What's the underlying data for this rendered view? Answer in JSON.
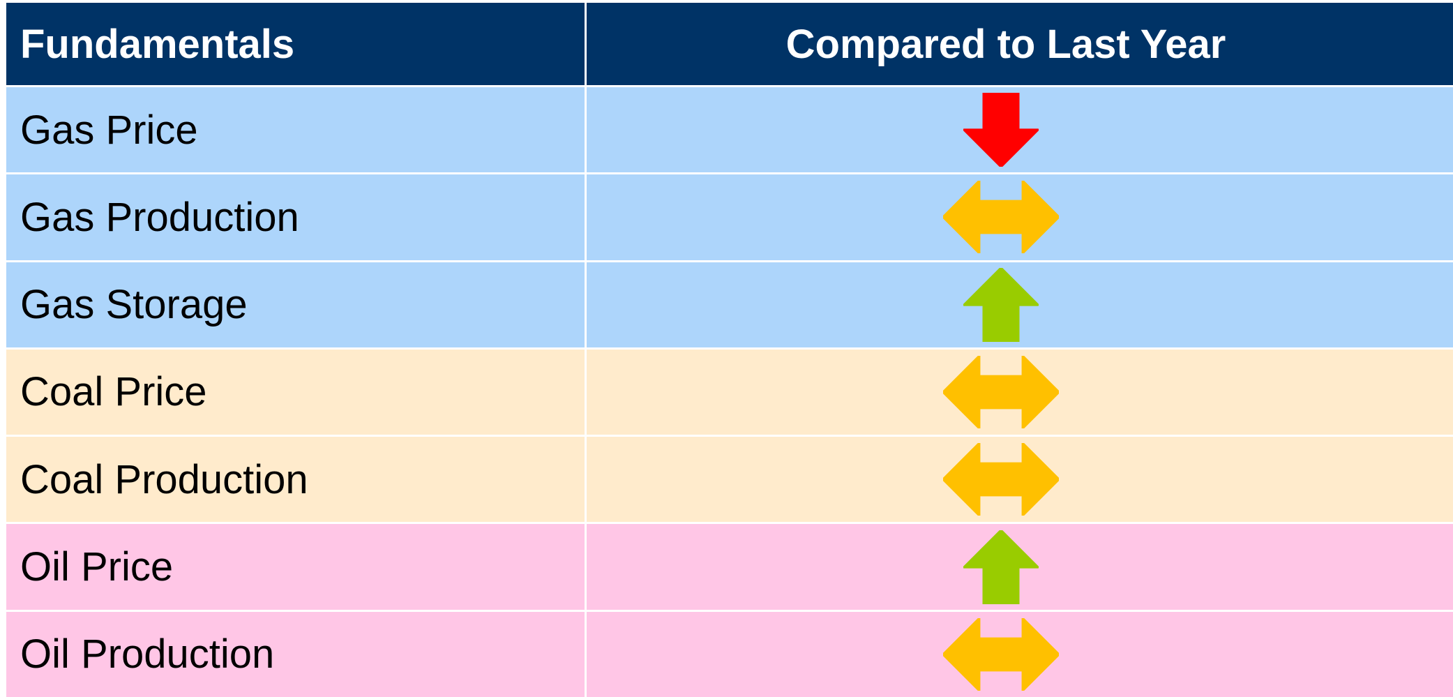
{
  "table": {
    "header": [
      "Fundamentals",
      "Compared to Last Year"
    ],
    "rows": [
      [
        "Gas Price"
      ],
      [
        "Gas Production"
      ],
      [
        "Gas Storage"
      ],
      [
        "Coal Price"
      ],
      [
        "Coal Production"
      ],
      [
        "Oil Price"
      ],
      [
        "Oil Production"
      ]
    ]
  }
}
